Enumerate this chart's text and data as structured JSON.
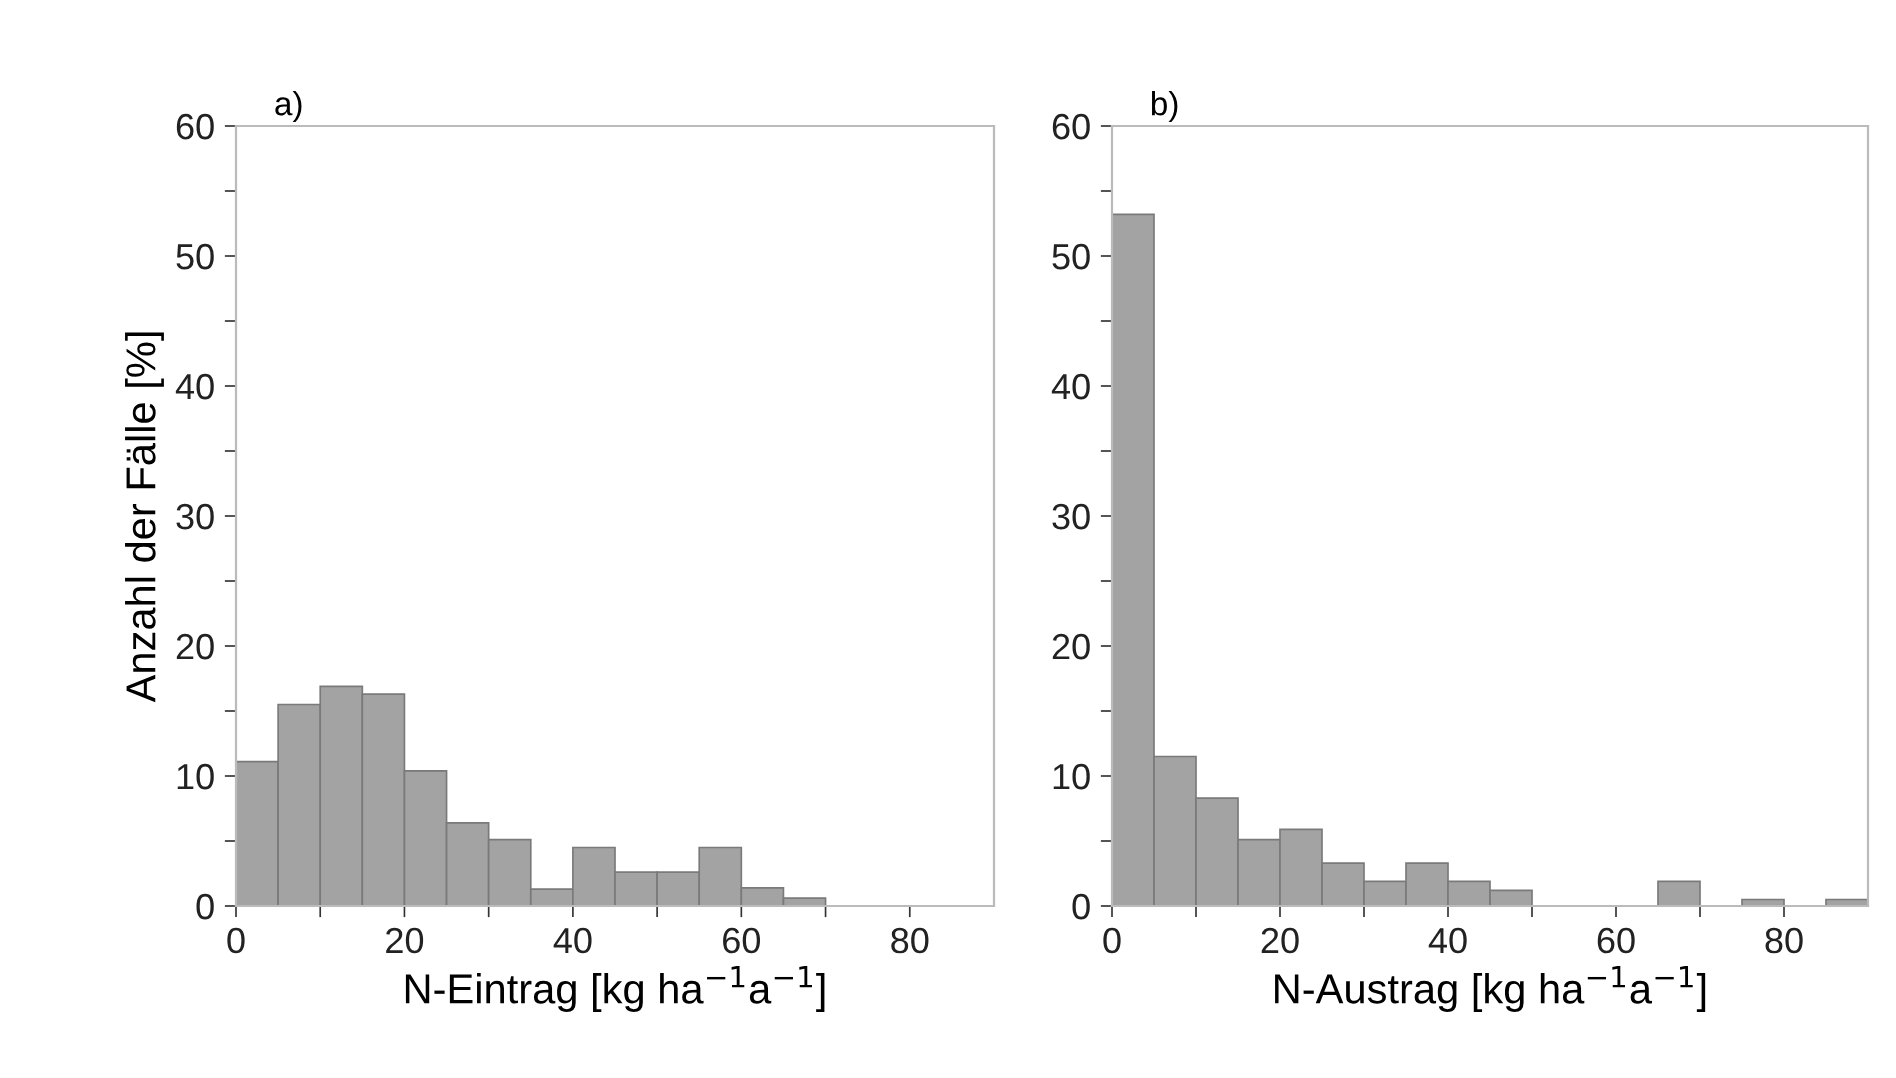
{
  "chart_data": [
    {
      "type": "histogram",
      "title": "a)",
      "xlabel": "N-Eintrag [kg ha$^{−1}$a$^{−1}$]",
      "ylabel": "Anzahl der Fälle [%]",
      "color": "#a3a3a3",
      "bins": [
        0,
        5,
        10,
        15,
        20,
        25,
        30,
        35,
        40,
        45,
        50,
        55,
        60,
        65,
        70
      ],
      "values": [
        11.1,
        15.5,
        16.9,
        16.3,
        10.4,
        6.4,
        5.1,
        1.3,
        4.5,
        2.6,
        2.6,
        4.5,
        1.4,
        0.6
      ],
      "xlim": [
        0,
        90
      ],
      "ylim": [
        0,
        60
      ],
      "xticks": [
        0,
        {
          "value": 10,
          "label": null
        },
        20,
        {
          "value": 30,
          "label": null
        },
        40,
        {
          "value": 50,
          "label": null
        },
        60,
        {
          "value": 70,
          "label": null
        },
        80
      ],
      "yticks": [
        0,
        {
          "value": 5,
          "label": null
        },
        10,
        {
          "value": 15,
          "label": null
        },
        20,
        {
          "value": 25,
          "label": null
        },
        30,
        {
          "value": 35,
          "label": null
        },
        40,
        {
          "value": 45,
          "label": null
        },
        50,
        {
          "value": 55,
          "label": null
        },
        60
      ],
      "grid": false
    },
    {
      "type": "histogram",
      "title": "b)",
      "xlabel": "N-Austrag [kg ha$^{−1}$a$^{−1}$]",
      "color": "#a3a3a3",
      "bins": [
        0,
        5,
        10,
        15,
        20,
        25,
        30,
        35,
        40,
        45,
        50,
        55,
        60,
        65,
        70,
        75,
        80,
        85,
        90
      ],
      "values": [
        53.2,
        11.5,
        8.3,
        5.1,
        5.9,
        3.3,
        1.9,
        3.3,
        1.9,
        1.2,
        0,
        0,
        0,
        1.9,
        0,
        0.5,
        0,
        0.5
      ],
      "xlim": [
        0,
        90
      ],
      "ylim": [
        0,
        60
      ],
      "xticks": [
        0,
        {
          "value": 10,
          "label": null
        },
        20,
        {
          "value": 30,
          "label": null
        },
        40,
        {
          "value": 50,
          "label": null
        },
        60,
        {
          "value": 70,
          "label": null
        },
        80
      ],
      "yticks": [
        0,
        {
          "value": 5,
          "label": null
        },
        10,
        {
          "value": 15,
          "label": null
        },
        20,
        {
          "value": 25,
          "label": null
        },
        30,
        {
          "value": 35,
          "label": null
        },
        40,
        {
          "value": 45,
          "label": null
        },
        50,
        {
          "value": 55,
          "label": null
        },
        60
      ],
      "grid": false
    }
  ]
}
